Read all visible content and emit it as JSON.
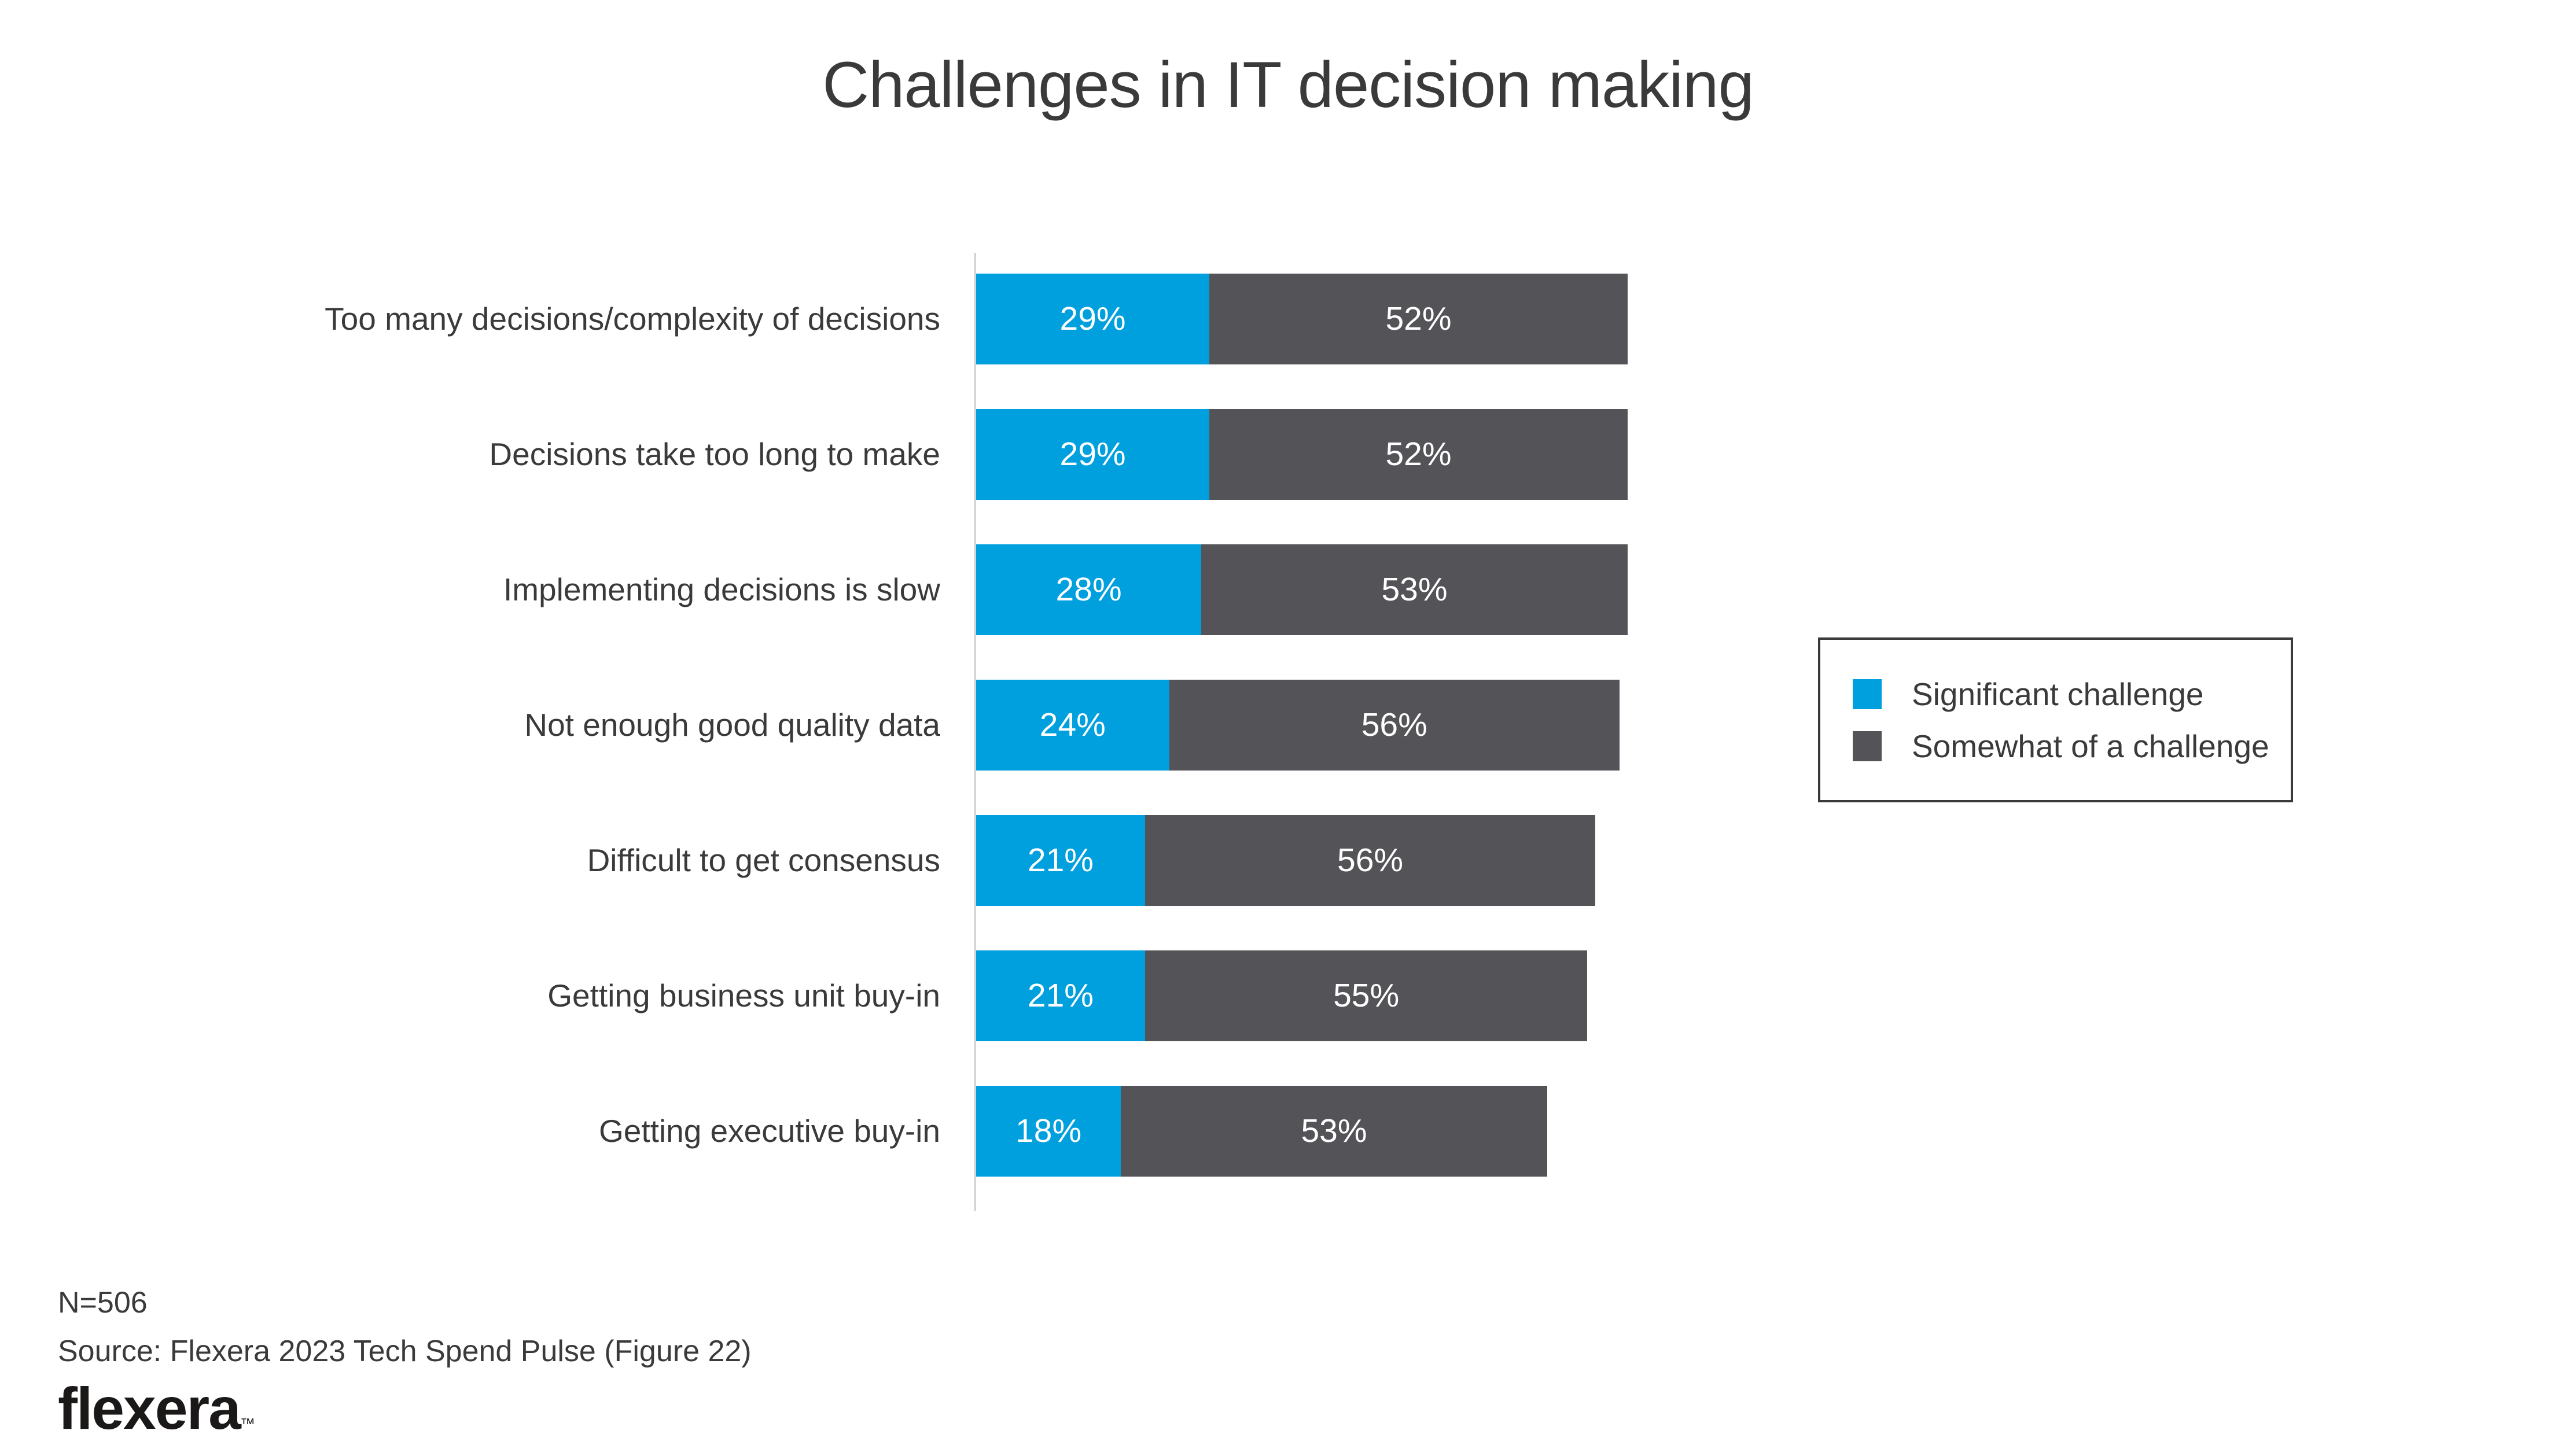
{
  "title": "Challenges in IT decision making",
  "chart_data": {
    "type": "bar",
    "subtype": "horizontal-stacked",
    "categories": [
      "Too many decisions/complexity of decisions",
      "Decisions take too long to make",
      "Implementing decisions is slow",
      "Not enough good quality data",
      "Difficult to get consensus",
      "Getting business unit buy-in",
      "Getting executive buy-in"
    ],
    "series": [
      {
        "name": "Significant challenge",
        "color": "#009fdd",
        "values": [
          29,
          29,
          28,
          24,
          21,
          21,
          18
        ]
      },
      {
        "name": "Somewhat of a challenge",
        "color": "#545458",
        "values": [
          52,
          52,
          53,
          56,
          56,
          55,
          53
        ]
      }
    ],
    "value_suffix": "%",
    "xlim": [
      0,
      100
    ],
    "gridlines": false,
    "legend_position": "right",
    "value_label_color": "#ffffff"
  },
  "legend": {
    "items": [
      {
        "label": "Significant challenge",
        "color": "#009fdd"
      },
      {
        "label": "Somewhat of a challenge",
        "color": "#545458"
      }
    ]
  },
  "footer": {
    "sample_size": "N=506",
    "source": "Source: Flexera 2023 Tech Spend Pulse (Figure 22)",
    "logo_text": "flexera",
    "logo_trademark": "™"
  },
  "colors": {
    "title_text": "#3a3a3a",
    "category_text": "#3a3a3a",
    "axis_line": "#d6d6d6",
    "legend_border": "#3a3a3a",
    "background": "#ffffff"
  }
}
